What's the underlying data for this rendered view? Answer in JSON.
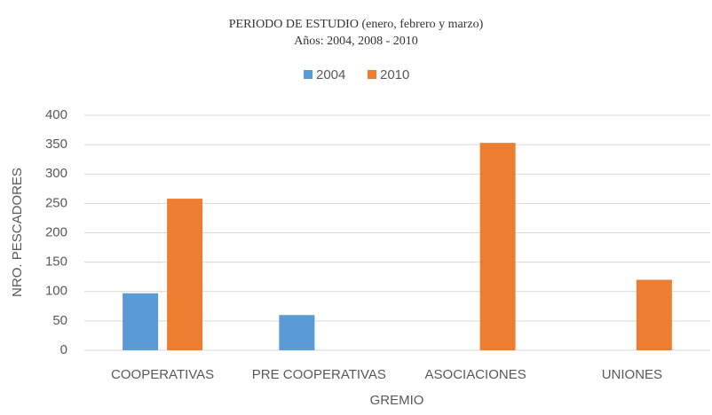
{
  "chart_data": {
    "type": "bar",
    "title": "PERIODO DE ESTUDIO (enero, febrero y marzo)",
    "subtitle": "Años: 2004, 2008 - 2010",
    "x_label": "GREMIO",
    "y_label": "NRO. PESCADORES",
    "categories": [
      "COOPERATIVAS",
      "PRE COOPERATIVAS",
      "ASOCIACIONES",
      "UNIONES"
    ],
    "series": [
      {
        "name": "2004",
        "color": "#5b9bd5",
        "values": [
          97,
          60,
          null,
          null
        ]
      },
      {
        "name": "2010",
        "color": "#ed7d31",
        "values": [
          258,
          null,
          353,
          120
        ]
      }
    ],
    "ylim": [
      0,
      400
    ],
    "yticks": [
      0,
      50,
      100,
      150,
      200,
      250,
      300,
      350,
      400
    ],
    "grid": true,
    "legend": "top"
  }
}
